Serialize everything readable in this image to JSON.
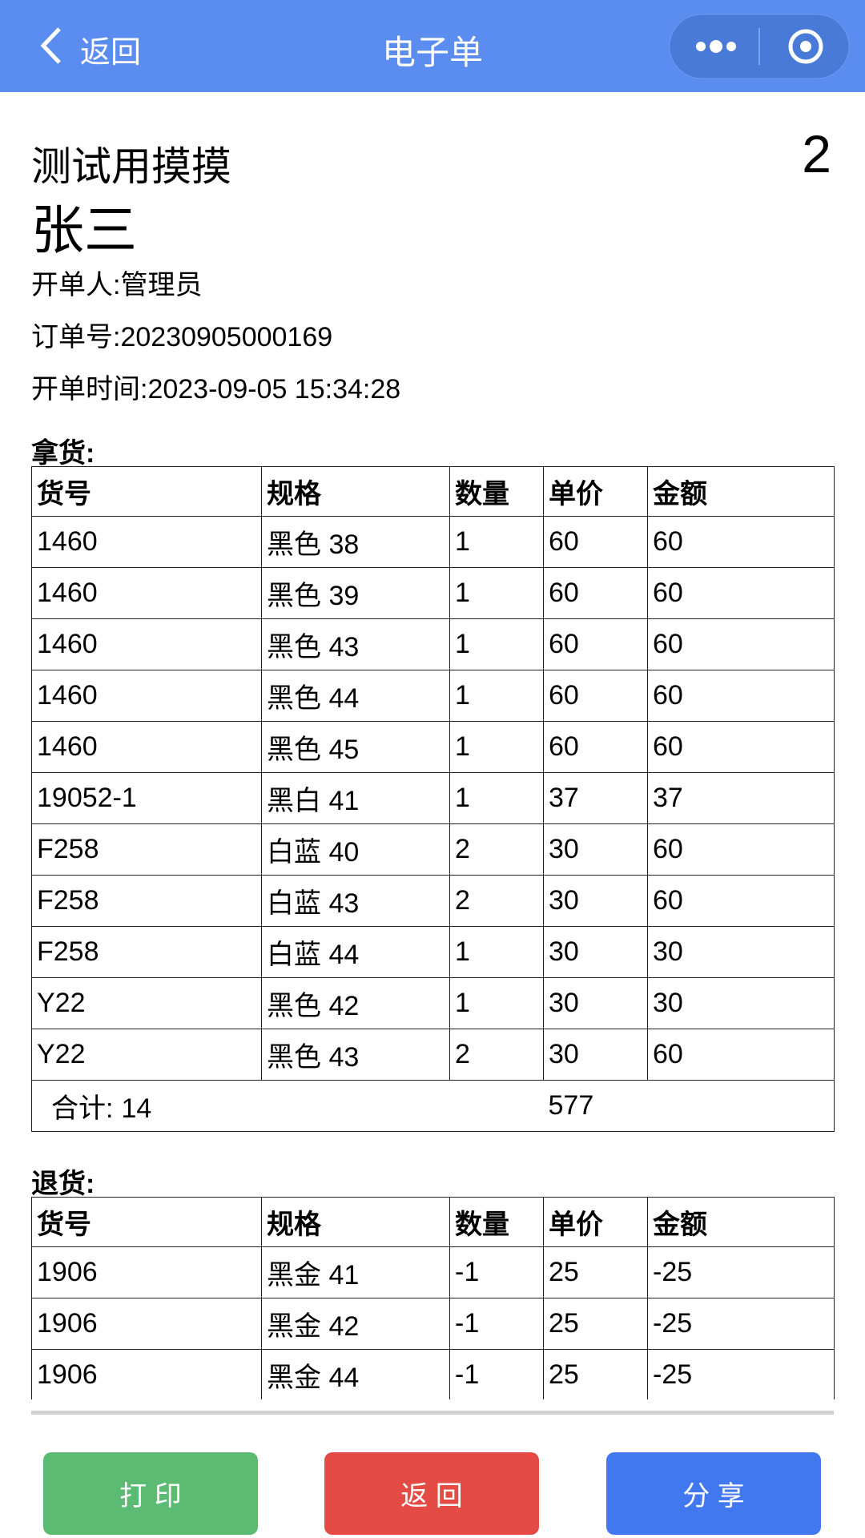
{
  "nav": {
    "back": "返回",
    "title": "电子单"
  },
  "order": {
    "shop": "测试用摸摸",
    "copies": 2,
    "customer": "张三",
    "creator": "开单人:管理员",
    "order_no": "订单号:20230905000169",
    "time": "开单时间:2023-09-05 15:34:28"
  },
  "pickup": {
    "title": "拿货:",
    "columns": [
      "货号",
      "规格",
      "数量",
      "单价",
      "金额"
    ],
    "rows": [
      [
        "1460",
        "黑色 38",
        1,
        60,
        60
      ],
      [
        "1460",
        "黑色 39",
        1,
        60,
        60
      ],
      [
        "1460",
        "黑色 43",
        1,
        60,
        60
      ],
      [
        "1460",
        "黑色 44",
        1,
        60,
        60
      ],
      [
        "1460",
        "黑色 45",
        1,
        60,
        60
      ],
      [
        "19052-1",
        "黑白 41",
        1,
        37,
        37
      ],
      [
        "F258",
        "白蓝 40",
        2,
        30,
        60
      ],
      [
        "F258",
        "白蓝 43",
        2,
        30,
        60
      ],
      [
        "F258",
        "白蓝 44",
        1,
        30,
        30
      ],
      [
        "Y22",
        "黑色 42",
        1,
        30,
        30
      ],
      [
        "Y22",
        "黑色 43",
        2,
        30,
        60
      ]
    ],
    "total_label": "合计:",
    "total_qty": 14,
    "total_amount": 577
  },
  "returns": {
    "title": "退货:",
    "columns": [
      "货号",
      "规格",
      "数量",
      "单价",
      "金额"
    ],
    "rows": [
      [
        "1906",
        "黑金 41",
        -1,
        25,
        -25
      ],
      [
        "1906",
        "黑金 42",
        -1,
        25,
        -25
      ],
      [
        "1906",
        "黑金 44",
        -1,
        25,
        -25
      ]
    ]
  },
  "buttons": {
    "print": "打 印",
    "back": "返 回",
    "share": "分 享"
  }
}
